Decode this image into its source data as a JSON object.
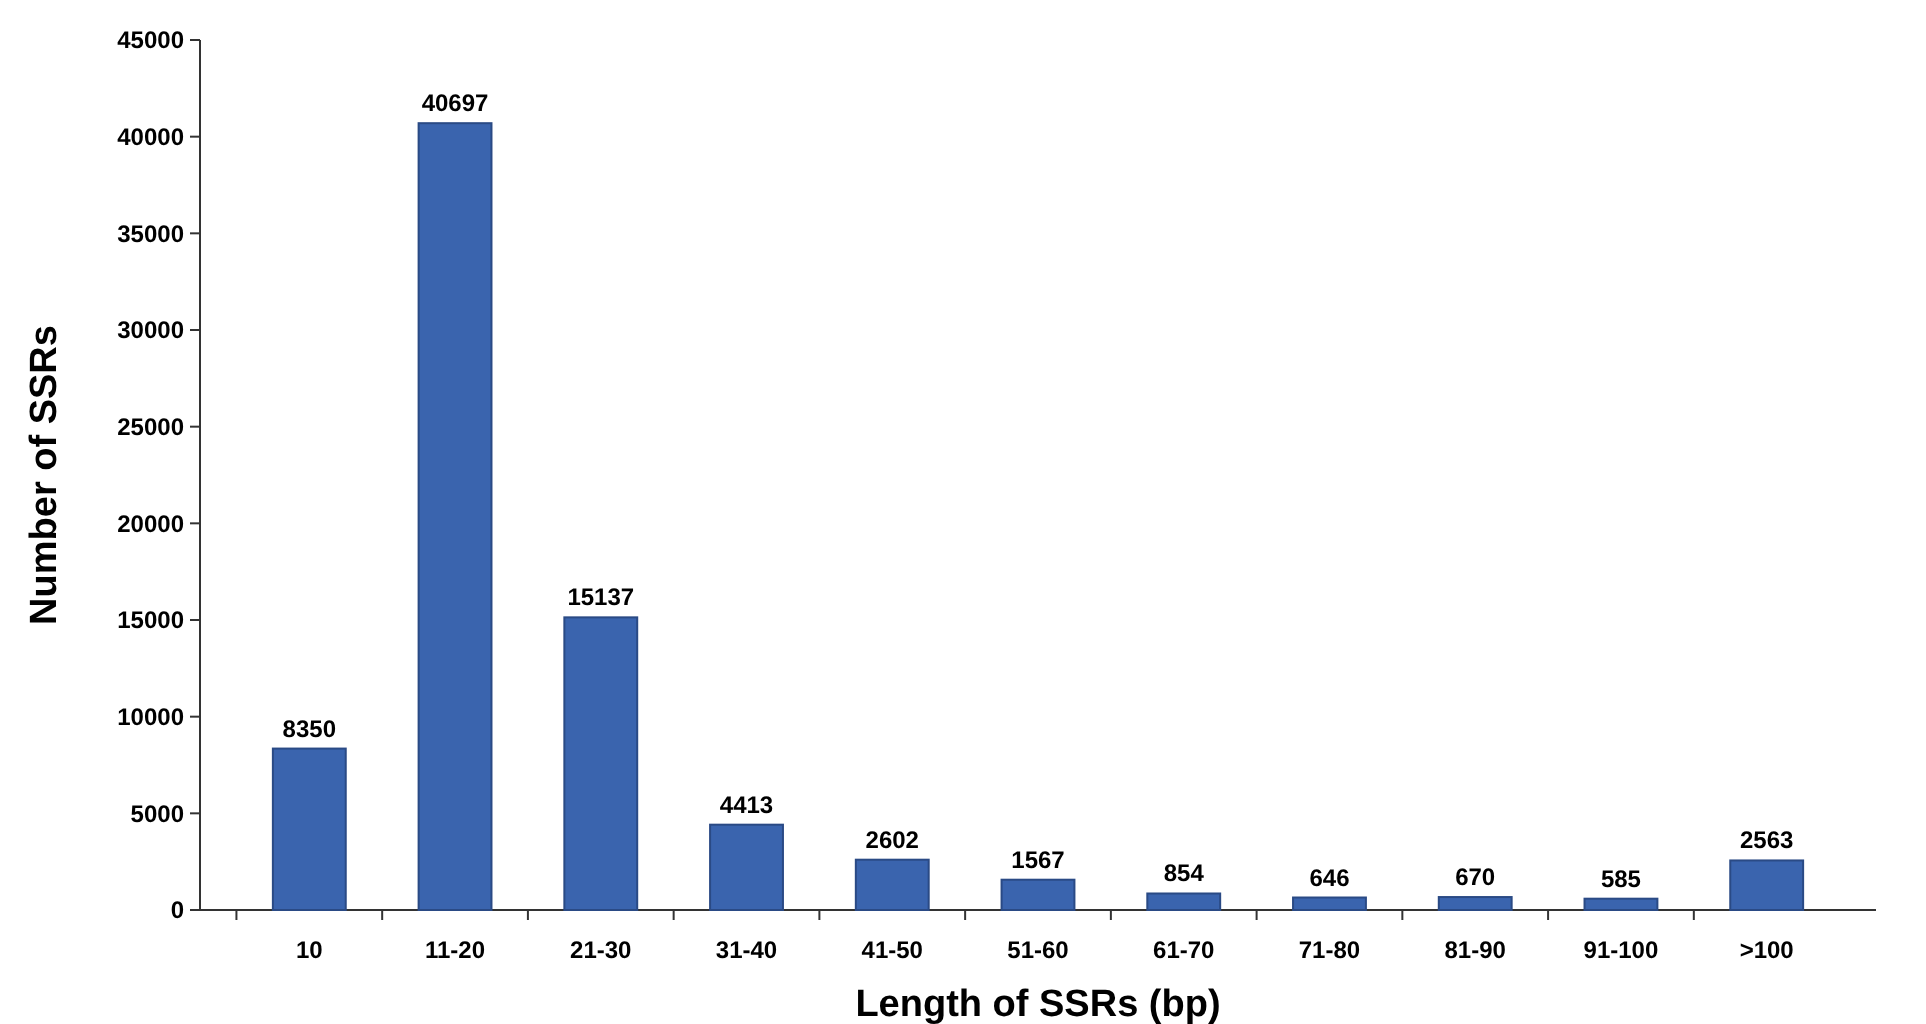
{
  "chart_data": {
    "type": "bar",
    "xlabel": "Length of SSRs (bp)",
    "ylabel": "Number of SSRs",
    "categories": [
      "10",
      "11-20",
      "21-30",
      "31-40",
      "41-50",
      "51-60",
      "61-70",
      "71-80",
      "81-90",
      "91-100",
      ">100"
    ],
    "values": [
      8350,
      40697,
      15137,
      4413,
      2602,
      1567,
      854,
      646,
      670,
      585,
      2563
    ],
    "color": "#3a64ae",
    "data_labels": true,
    "ylim": [
      0,
      45000
    ],
    "yticks": [
      0,
      5000,
      10000,
      15000,
      20000,
      25000,
      30000,
      35000,
      40000,
      45000
    ],
    "grid": false
  }
}
